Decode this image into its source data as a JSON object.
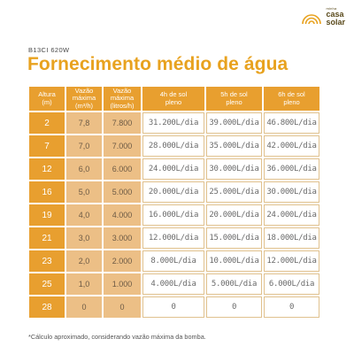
{
  "brand": {
    "small": "minha",
    "line1": "casa",
    "line2": "solar"
  },
  "model": "B13CI 620W",
  "title": "Fornecimento médio de água",
  "headers": {
    "altura": [
      "Altura",
      "(m)"
    ],
    "vazao_m3": [
      "Vazão",
      "máxima",
      "(m³/h)"
    ],
    "vazao_l": [
      "Vazão",
      "máxima",
      "(litros/h)"
    ],
    "sun4": [
      "4h de sol",
      "pleno"
    ],
    "sun5": [
      "5h de sol",
      "pleno"
    ],
    "sun6": [
      "6h de sol",
      "pleno"
    ]
  },
  "rows": [
    {
      "altura": "2",
      "vazao_m3": "7,8",
      "vazao_l": "7.800",
      "sun4": "31.200L/dia",
      "sun5": "39.000L/dia",
      "sun6": "46.800L/dia"
    },
    {
      "altura": "7",
      "vazao_m3": "7,0",
      "vazao_l": "7.000",
      "sun4": "28.000L/dia",
      "sun5": "35.000L/dia",
      "sun6": "42.000L/dia"
    },
    {
      "altura": "12",
      "vazao_m3": "6,0",
      "vazao_l": "6.000",
      "sun4": "24.000L/dia",
      "sun5": "30.000L/dia",
      "sun6": "36.000L/dia"
    },
    {
      "altura": "16",
      "vazao_m3": "5,0",
      "vazao_l": "5.000",
      "sun4": "20.000L/dia",
      "sun5": "25.000L/dia",
      "sun6": "30.000L/dia"
    },
    {
      "altura": "19",
      "vazao_m3": "4,0",
      "vazao_l": "4.000",
      "sun4": "16.000L/dia",
      "sun5": "20.000L/dia",
      "sun6": "24.000L/dia"
    },
    {
      "altura": "21",
      "vazao_m3": "3,0",
      "vazao_l": "3.000",
      "sun4": "12.000L/dia",
      "sun5": "15.000L/dia",
      "sun6": "18.000L/dia"
    },
    {
      "altura": "23",
      "vazao_m3": "2,0",
      "vazao_l": "2.000",
      "sun4": "8.000L/dia",
      "sun5": "10.000L/dia",
      "sun6": "12.000L/dia"
    },
    {
      "altura": "25",
      "vazao_m3": "1,0",
      "vazao_l": "1.000",
      "sun4": "4.000L/dia",
      "sun5": "5.000L/dia",
      "sun6": "6.000L/dia"
    },
    {
      "altura": "28",
      "vazao_m3": "0",
      "vazao_l": "0",
      "sun4": "0",
      "sun5": "0",
      "sun6": "0"
    }
  ],
  "footnote": "*Cálculo aproximado, considerando vazão máxima da bomba.",
  "colors": {
    "accent": "#e89f2f",
    "flow_bg": "#ecbf86",
    "title": "#e8a21f"
  }
}
